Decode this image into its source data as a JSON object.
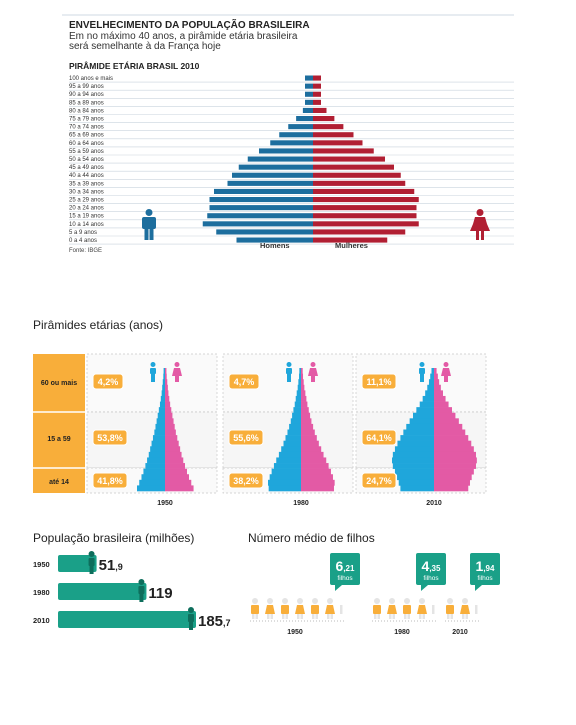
{
  "top": {
    "headline": "ENVELHECIMENTO DA POPULAÇÃO BRASILEIRA",
    "subtitle_line1": "Em no máximo 40 anos, a pirâmide etária brasileira",
    "subtitle_line2": "será semelhante à da França hoje",
    "chart_title": "PIRÂMIDE ETÁRIA  BRASIL 2010",
    "source": "Fonte: IBGE"
  },
  "bottom": {
    "title": "Pirâmides etárias (anos)",
    "row_labels": [
      "60 ou mais",
      "15 a 59",
      "até 14"
    ]
  },
  "population": {
    "title": "População brasileira (milhões)"
  },
  "children": {
    "title": "Número médio de filhos"
  },
  "colors": {
    "men_top": "#1d6e9e",
    "women_top": "#b11f33",
    "men_bottom": "#1fa6db",
    "women_bottom": "#e35aa5",
    "orange": "#f8ae3a",
    "teal": "#1aa088"
  },
  "chart_data": [
    {
      "type": "bar",
      "title": "PIRÂMIDE ETÁRIA  BRASIL 2010",
      "orientation": "horizontal-population-pyramid",
      "categories": [
        "100 anos e mais",
        "95 a 99 anos",
        "90 a 94 anos",
        "85 a 89 anos",
        "80 a 84 anos",
        "75 a 79 anos",
        "70 a 74 anos",
        "65 a 69 anos",
        "60 a 64 anos",
        "55 a 59 anos",
        "50 a 54 anos",
        "45 a 49 anos",
        "40 a 44 anos",
        "35 a 39 anos",
        "30 a 34 anos",
        "25 a 29 anos",
        "20 a 24 anos",
        "15 a 19 anos",
        "10 a 14 anos",
        "5 a 9 anos",
        "0 a 4 anos"
      ],
      "series": [
        {
          "name": "Homens",
          "values": [
            0.01,
            0.03,
            0.09,
            0.22,
            0.45,
            0.75,
            1.1,
            1.5,
            1.9,
            2.4,
            2.9,
            3.3,
            3.6,
            3.8,
            4.4,
            4.6,
            4.6,
            4.7,
            4.9,
            4.3,
            3.4
          ]
        },
        {
          "name": "Mulheres",
          "values": [
            0.02,
            0.05,
            0.14,
            0.3,
            0.6,
            0.95,
            1.35,
            1.8,
            2.2,
            2.7,
            3.2,
            3.6,
            3.9,
            4.1,
            4.5,
            4.7,
            4.6,
            4.6,
            4.7,
            4.1,
            3.3
          ]
        }
      ]
    },
    {
      "type": "bar",
      "title": "Pirâmides etárias (anos)",
      "categories": [
        "1950",
        "1980",
        "2010"
      ],
      "groups": [
        "60 ou mais",
        "15 a 59",
        "até 14"
      ],
      "series": [
        {
          "name": "60 ou mais",
          "values": [
            4.2,
            4.7,
            11.1
          ],
          "labels": [
            "4,2%",
            "4,7%",
            "11,1%"
          ]
        },
        {
          "name": "15 a 59",
          "values": [
            53.8,
            55.6,
            64.1
          ],
          "labels": [
            "53,8%",
            "55,6%",
            "64,1%"
          ]
        },
        {
          "name": "até 14",
          "values": [
            41.8,
            38.2,
            24.7
          ],
          "labels": [
            "41,8%",
            "38,2%",
            "24,7%"
          ]
        }
      ],
      "ylim": [
        0,
        100
      ]
    },
    {
      "type": "bar",
      "title": "População brasileira (milhões)",
      "categories": [
        "1950",
        "1980",
        "2010"
      ],
      "values": [
        51.9,
        119,
        185.7
      ],
      "label_int": [
        "51",
        "119",
        "185"
      ],
      "label_dec": [
        ",9",
        "",
        ",7"
      ]
    },
    {
      "type": "bar",
      "title": "Número médio de filhos",
      "categories": [
        "1950",
        "1980",
        "2010"
      ],
      "values": [
        6.21,
        4.35,
        1.94
      ],
      "label_int": [
        "6",
        "4",
        "1"
      ],
      "label_dec": [
        ",21",
        ",35",
        ",94"
      ],
      "unit": "filhos"
    }
  ]
}
